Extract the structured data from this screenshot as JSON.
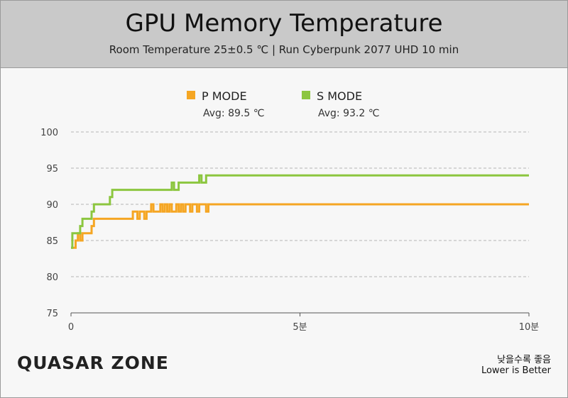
{
  "chart_data": {
    "type": "line",
    "title": "GPU Memory Temperature",
    "subtitle": "Room Temperature 25±0.5 ℃  |  Run Cyberpunk 2077 UHD 10 min",
    "ylim": [
      75,
      100
    ],
    "yticks": [
      "100",
      "95",
      "90",
      "85",
      "80",
      "75"
    ],
    "xlim": [
      0,
      10
    ],
    "xticks": [
      {
        "v": 0,
        "label": "0"
      },
      {
        "v": 5,
        "label": "5분"
      },
      {
        "v": 10,
        "label": "10분"
      }
    ],
    "grid": true,
    "legend_position": "top",
    "series": [
      {
        "name": "P MODE",
        "avg_label": "Avg: 89.5 ℃",
        "color": "#f5a623",
        "points": [
          [
            0,
            84
          ],
          [
            0.1,
            84
          ],
          [
            0.1,
            85
          ],
          [
            0.15,
            85
          ],
          [
            0.15,
            86
          ],
          [
            0.2,
            86
          ],
          [
            0.2,
            85
          ],
          [
            0.25,
            85
          ],
          [
            0.25,
            86
          ],
          [
            0.45,
            86
          ],
          [
            0.45,
            87
          ],
          [
            0.5,
            87
          ],
          [
            0.5,
            88
          ],
          [
            1.35,
            88
          ],
          [
            1.35,
            89
          ],
          [
            1.45,
            89
          ],
          [
            1.45,
            88
          ],
          [
            1.5,
            88
          ],
          [
            1.5,
            89
          ],
          [
            1.6,
            89
          ],
          [
            1.6,
            88
          ],
          [
            1.65,
            88
          ],
          [
            1.65,
            89
          ],
          [
            1.75,
            89
          ],
          [
            1.75,
            90
          ],
          [
            1.8,
            90
          ],
          [
            1.8,
            89
          ],
          [
            1.95,
            89
          ],
          [
            1.95,
            90
          ],
          [
            2.0,
            90
          ],
          [
            2.0,
            89
          ],
          [
            2.05,
            89
          ],
          [
            2.05,
            90
          ],
          [
            2.1,
            90
          ],
          [
            2.1,
            89
          ],
          [
            2.15,
            89
          ],
          [
            2.15,
            90
          ],
          [
            2.2,
            90
          ],
          [
            2.2,
            89
          ],
          [
            2.3,
            89
          ],
          [
            2.3,
            90
          ],
          [
            2.35,
            90
          ],
          [
            2.35,
            89
          ],
          [
            2.4,
            89
          ],
          [
            2.4,
            90
          ],
          [
            2.45,
            90
          ],
          [
            2.45,
            89
          ],
          [
            2.5,
            89
          ],
          [
            2.5,
            90
          ],
          [
            2.6,
            90
          ],
          [
            2.6,
            89
          ],
          [
            2.65,
            89
          ],
          [
            2.65,
            90
          ],
          [
            2.75,
            90
          ],
          [
            2.75,
            89
          ],
          [
            2.8,
            89
          ],
          [
            2.8,
            90
          ],
          [
            2.95,
            90
          ],
          [
            2.95,
            89
          ],
          [
            3.0,
            89
          ],
          [
            3.0,
            90
          ],
          [
            10,
            90
          ]
        ]
      },
      {
        "name": "S MODE",
        "avg_label": "Avg: 93.2 ℃",
        "color": "#8cc63f",
        "points": [
          [
            0,
            84
          ],
          [
            0.03,
            84
          ],
          [
            0.03,
            86
          ],
          [
            0.2,
            86
          ],
          [
            0.2,
            87
          ],
          [
            0.25,
            87
          ],
          [
            0.25,
            88
          ],
          [
            0.45,
            88
          ],
          [
            0.45,
            89
          ],
          [
            0.5,
            89
          ],
          [
            0.5,
            90
          ],
          [
            0.85,
            90
          ],
          [
            0.85,
            91
          ],
          [
            0.9,
            91
          ],
          [
            0.9,
            92
          ],
          [
            2.2,
            92
          ],
          [
            2.2,
            93
          ],
          [
            2.25,
            93
          ],
          [
            2.25,
            92
          ],
          [
            2.35,
            92
          ],
          [
            2.35,
            93
          ],
          [
            2.8,
            93
          ],
          [
            2.8,
            94
          ],
          [
            2.85,
            94
          ],
          [
            2.85,
            93
          ],
          [
            2.95,
            93
          ],
          [
            2.95,
            94
          ],
          [
            10,
            94
          ]
        ]
      }
    ]
  },
  "logo_text": "QUASAR ZONE",
  "note_ko": "낮을수록 좋음",
  "note_en": "Lower is Better"
}
